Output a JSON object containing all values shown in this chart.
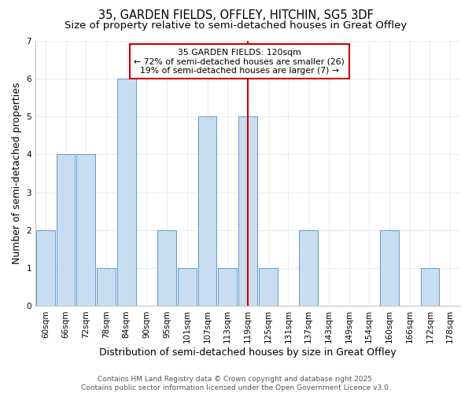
{
  "title_line1": "35, GARDEN FIELDS, OFFLEY, HITCHIN, SG5 3DF",
  "title_line2": "Size of property relative to semi-detached houses in Great Offley",
  "xlabel": "Distribution of semi-detached houses by size in Great Offley",
  "ylabel": "Number of semi-detached properties",
  "categories": [
    "60sqm",
    "66sqm",
    "72sqm",
    "78sqm",
    "84sqm",
    "90sqm",
    "95sqm",
    "101sqm",
    "107sqm",
    "113sqm",
    "119sqm",
    "125sqm",
    "131sqm",
    "137sqm",
    "143sqm",
    "149sqm",
    "154sqm",
    "160sqm",
    "166sqm",
    "172sqm",
    "178sqm"
  ],
  "values": [
    2,
    4,
    4,
    1,
    6,
    0,
    2,
    1,
    5,
    1,
    5,
    1,
    0,
    2,
    0,
    0,
    0,
    2,
    0,
    1,
    0
  ],
  "bar_color": "#c8ddf0",
  "bar_edge_color": "#6699cc",
  "highlight_line_color": "#cc0000",
  "annotation_text": "35 GARDEN FIELDS: 120sqm\n← 72% of semi-detached houses are smaller (26)\n19% of semi-detached houses are larger (7) →",
  "annotation_box_color": "#cc0000",
  "annotation_text_color": "black",
  "annotation_bg_color": "white",
  "ylim": [
    0,
    7
  ],
  "yticks": [
    0,
    1,
    2,
    3,
    4,
    5,
    6,
    7
  ],
  "footer": "Contains HM Land Registry data © Crown copyright and database right 2025.\nContains public sector information licensed under the Open Government Licence v3.0.",
  "background_color": "#ffffff",
  "grid_color": "#e8eef5",
  "title_fontsize": 10.5,
  "subtitle_fontsize": 9.5,
  "axis_label_fontsize": 9,
  "tick_fontsize": 7.5,
  "footer_fontsize": 6.5,
  "highlight_bin_index": 10
}
